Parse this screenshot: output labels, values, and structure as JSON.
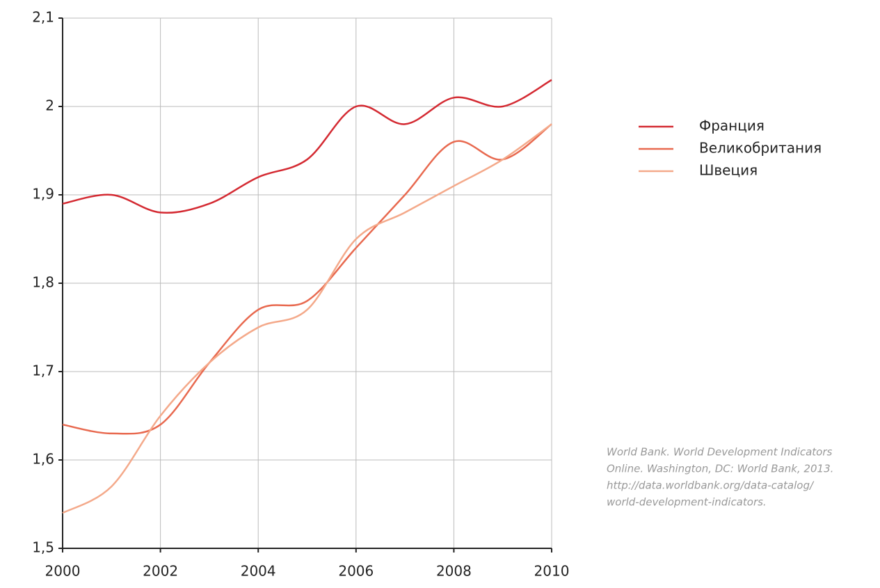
{
  "chart_data": {
    "type": "line",
    "x": [
      2000,
      2001,
      2002,
      2003,
      2004,
      2005,
      2006,
      2007,
      2008,
      2009,
      2010
    ],
    "series": [
      {
        "name": "Франция",
        "color": "#d42a32",
        "values": [
          1.89,
          1.9,
          1.88,
          1.89,
          1.92,
          1.94,
          2.0,
          1.98,
          2.01,
          2.0,
          2.03
        ]
      },
      {
        "name": "Великобритания",
        "color": "#e8694f",
        "values": [
          1.64,
          1.63,
          1.64,
          1.71,
          1.77,
          1.78,
          1.84,
          1.9,
          1.96,
          1.94,
          1.98
        ]
      },
      {
        "name": "Швеция",
        "color": "#f4a98a",
        "values": [
          1.54,
          1.57,
          1.65,
          1.71,
          1.75,
          1.77,
          1.85,
          1.88,
          1.91,
          1.94,
          1.98
        ]
      }
    ],
    "xlim": [
      2000,
      2010
    ],
    "xticks": [
      2000,
      2002,
      2004,
      2006,
      2008,
      2010
    ],
    "ylim": [
      1.5,
      2.1
    ],
    "yticks": [
      {
        "value": 1.5,
        "label": "1,5"
      },
      {
        "value": 1.6,
        "label": "1,6"
      },
      {
        "value": 1.7,
        "label": "1,7"
      },
      {
        "value": 1.8,
        "label": "1,8"
      },
      {
        "value": 1.9,
        "label": "1,9"
      },
      2,
      {
        "value": 2.1,
        "label": "2,1"
      }
    ],
    "grid": true,
    "smooth": true,
    "source": [
      "World Bank. World Development Indicators",
      "Online. Washington, DC: World Bank, 2013.",
      "http://data.worldbank.org/data-catalog/",
      "world-development-indicators."
    ]
  }
}
